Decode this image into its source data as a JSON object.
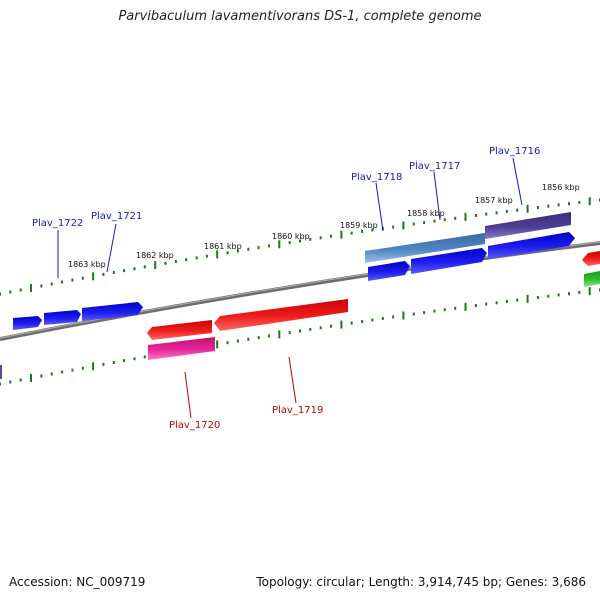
{
  "title": "Parvibaculum lavamentivorans DS-1, complete genome",
  "footer": {
    "accession": "Accession: NC_009719",
    "info": "Topology: circular; Length: 3,914,745 bp; Genes: 3,686"
  },
  "scale_labels": [
    "1863 kbp",
    "1862 kbp",
    "1861 kbp",
    "1860 kbp",
    "1859 kbp",
    "1858 kbp",
    "1857 kbp",
    "1856 kbp"
  ],
  "genes": [
    {
      "locus": "Plav_1722",
      "strand": "+"
    },
    {
      "locus": "Plav_1721",
      "strand": "+"
    },
    {
      "locus": "Plav_1718",
      "strand": "+"
    },
    {
      "locus": "Plav_1717",
      "strand": "+"
    },
    {
      "locus": "Plav_1716",
      "strand": "+"
    },
    {
      "locus": "Plav_1720",
      "strand": "-"
    },
    {
      "locus": "Plav_1719",
      "strand": "-"
    }
  ],
  "colors": {
    "backbone": "#808080",
    "tick": "#1a7a1a",
    "forward_gene": "#1414e6",
    "reverse_gene": "#e61414",
    "reverse_feature": "#e0208a",
    "steelblue_feature": "#4a7cb0",
    "purple_feature": "#4a3a8c",
    "green_feature": "#2ab02a"
  }
}
